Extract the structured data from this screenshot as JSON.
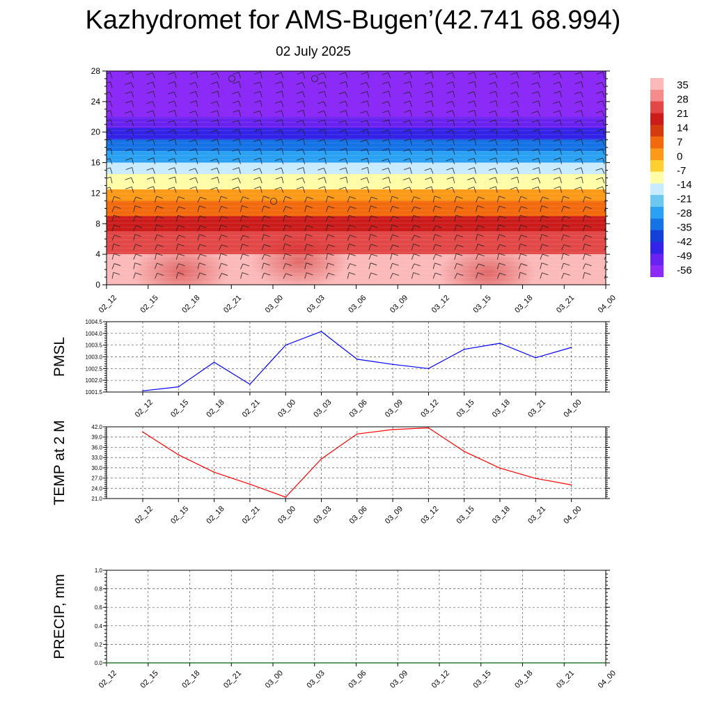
{
  "title": "Kazhydromet for AMS-Bugen’(42.741 68.994)",
  "subtitle": "02 July 2025",
  "colorbar": {
    "labels": [
      "35",
      "28",
      "21",
      "14",
      "7",
      "0",
      "-7",
      "-14",
      "-21",
      "-28",
      "-35",
      "-42",
      "-49",
      "-56"
    ],
    "colors": [
      "#fbb9b9",
      "#f58c8c",
      "#e34848",
      "#cc1b1b",
      "#d63a0f",
      "#f26a0d",
      "#fb9a18",
      "#fdd032",
      "#fffda8",
      "#c9ebff",
      "#6dc8f0",
      "#2aa1f2",
      "#1573e6",
      "#1340d8",
      "#3322e8",
      "#6a22f0",
      "#8c2bf7"
    ]
  },
  "chart_data": [
    {
      "type": "heatmap",
      "title": "",
      "xlabel": "",
      "ylabel": "",
      "x": [
        "02_12",
        "02_15",
        "02_18",
        "02_21",
        "03_00",
        "03_03",
        "03_06",
        "03_09",
        "03_12",
        "03_15",
        "03_18",
        "03_21",
        "04_00"
      ],
      "ylim": [
        0,
        28
      ],
      "yticks": [
        "0",
        "4",
        "8",
        "12",
        "16",
        "20",
        "24",
        "28"
      ],
      "bands": [
        {
          "from": 0,
          "to": 4,
          "value": 33
        },
        {
          "from": 4,
          "to": 7,
          "value": 24
        },
        {
          "from": 7,
          "to": 9,
          "value": 16
        },
        {
          "from": 9,
          "to": 11,
          "value": 8
        },
        {
          "from": 11,
          "to": 12.5,
          "value": 0
        },
        {
          "from": 12.5,
          "to": 14.5,
          "value": -9
        },
        {
          "from": 14.5,
          "to": 16,
          "value": -18
        },
        {
          "from": 16,
          "to": 17.5,
          "value": -27
        },
        {
          "from": 17.5,
          "to": 19,
          "value": -35
        },
        {
          "from": 19,
          "to": 20.5,
          "value": -45
        },
        {
          "from": 20.5,
          "to": 22,
          "value": -52
        },
        {
          "from": 22,
          "to": 28,
          "value": -60
        }
      ],
      "overlay": "wind barbs"
    },
    {
      "type": "line",
      "ylabel": "PMSL",
      "x": [
        "02_12",
        "02_15",
        "02_18",
        "02_21",
        "03_00",
        "03_03",
        "03_06",
        "03_09",
        "03_12",
        "03_15",
        "03_18",
        "03_21",
        "04_00"
      ],
      "values": [
        1001.55,
        1001.72,
        1002.77,
        1001.83,
        1003.5,
        1004.08,
        1002.9,
        1002.68,
        1002.5,
        1003.32,
        1003.58,
        1002.96,
        1003.4
      ],
      "ylim": [
        1001.5,
        1004.5
      ],
      "yticks": [
        "1001.5",
        "1002.0",
        "1002.5",
        "1003.0",
        "1003.5",
        "1004.0",
        "1004.5"
      ],
      "color": "#0000ff",
      "grid": true
    },
    {
      "type": "line",
      "ylabel": "TEMP at 2 M",
      "x": [
        "02_12",
        "02_15",
        "02_18",
        "02_21",
        "03_00",
        "03_03",
        "03_06",
        "03_09",
        "03_12",
        "03_15",
        "03_18",
        "03_21",
        "04_00"
      ],
      "values": [
        40.5,
        33.8,
        28.7,
        25.2,
        21.4,
        32.6,
        39.9,
        41.2,
        41.7,
        34.8,
        29.9,
        26.9,
        25.0
      ],
      "ylim": [
        21.0,
        42.0
      ],
      "yticks": [
        "21.0",
        "24.0",
        "27.0",
        "30.0",
        "33.0",
        "36.0",
        "39.0",
        "42.0"
      ],
      "color": "#ff0000",
      "grid": true
    },
    {
      "type": "line",
      "ylabel": "PRECIP, mm",
      "x": [
        "02_12",
        "02_15",
        "02_18",
        "02_21",
        "03_00",
        "03_03",
        "03_06",
        "03_09",
        "03_12",
        "03_15",
        "03_18",
        "03_21",
        "04_00"
      ],
      "values": [
        0,
        0,
        0,
        0,
        0,
        0,
        0,
        0,
        0,
        0,
        0,
        0,
        0
      ],
      "ylim": [
        0.0,
        1.0
      ],
      "yticks": [
        "0.0",
        "0.2",
        "0.4",
        "0.6",
        "0.8",
        "1.0"
      ],
      "color": "#006400",
      "grid": true
    }
  ]
}
